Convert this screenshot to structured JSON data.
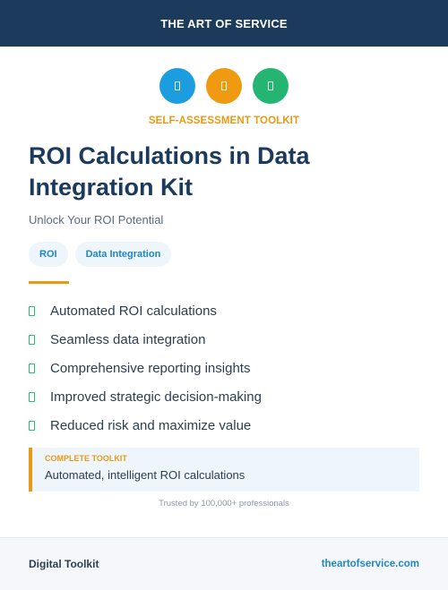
{
  "header": {
    "title": "THE ART OF SERVICE"
  },
  "icons": [
    {
      "name": "blue-icon",
      "color": "#1b9de0"
    },
    {
      "name": "orange-icon",
      "color": "#f09a12"
    },
    {
      "name": "green-icon",
      "color": "#25b573"
    }
  ],
  "eyebrow": "SELF-ASSESSMENT TOOLKIT",
  "title": "ROI Calculations in Data Integration Kit",
  "subtitle": "Unlock Your ROI Potential",
  "tags": [
    "ROI",
    "Data Integration"
  ],
  "features": [
    "Automated ROI calculations",
    "Seamless data integration",
    "Comprehensive reporting insights",
    "Improved strategic decision-making",
    "Reduced risk and maximize value"
  ],
  "callout": {
    "label": "COMPLETE TOOLKIT",
    "text": "Automated, intelligent ROI calculations"
  },
  "trusted": "Trusted by 100,000+ professionals",
  "footer": {
    "left": "Digital Toolkit",
    "right": "theartofservice.com"
  },
  "colors": {
    "navy": "#1b3a5c",
    "accent": "#e89a15",
    "link": "#1f86c9",
    "check": "#2bb673"
  }
}
